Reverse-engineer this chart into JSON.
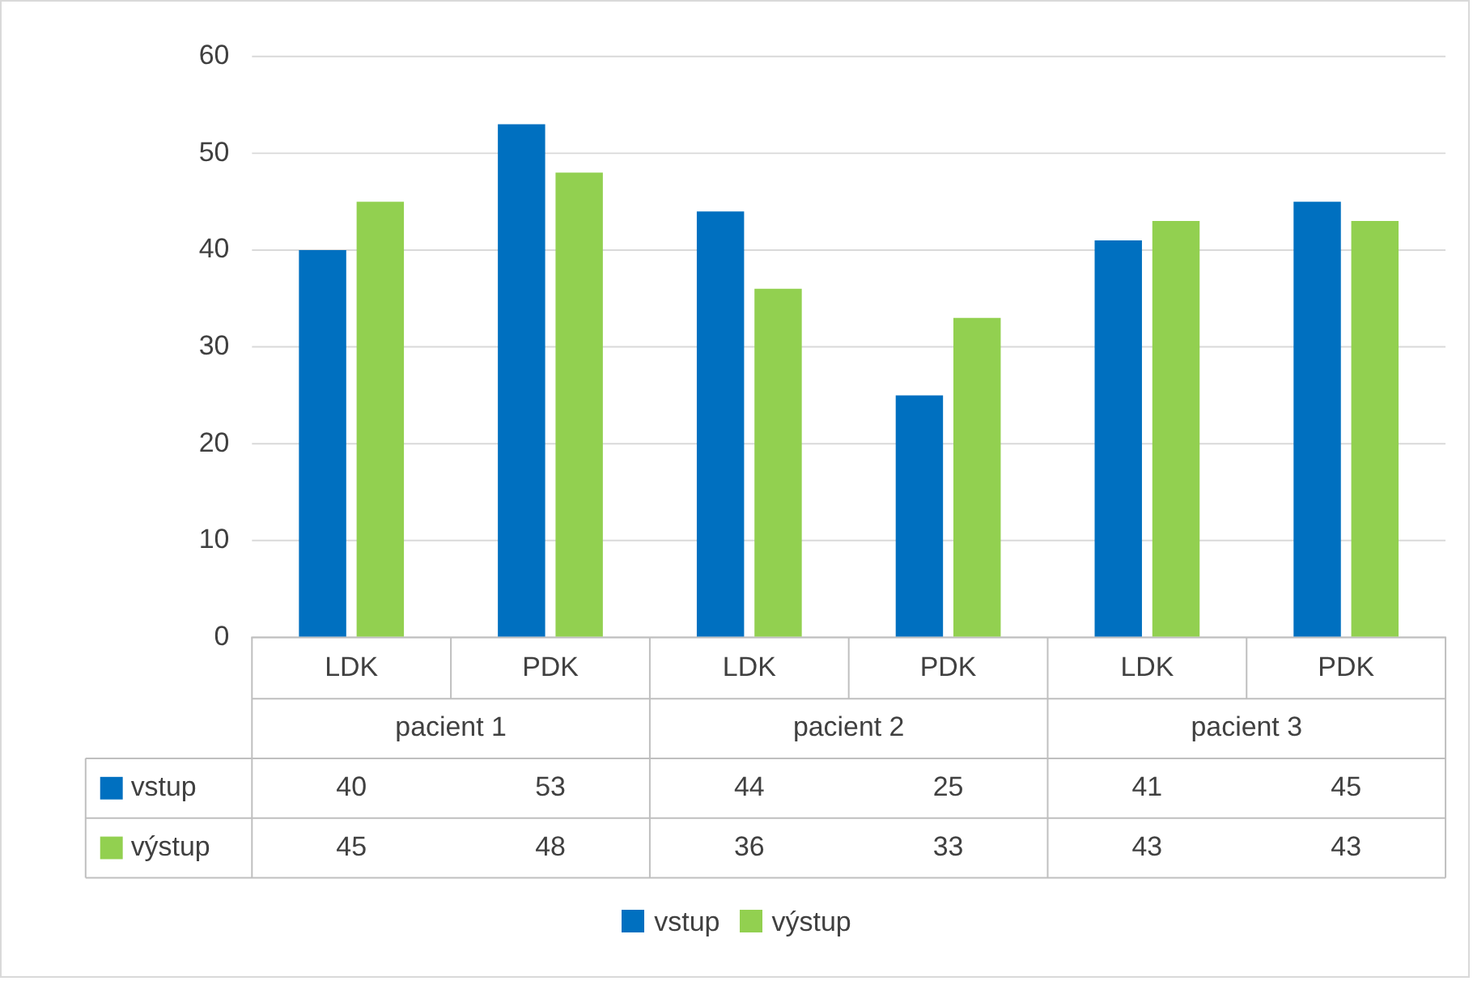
{
  "chart_data": {
    "type": "bar",
    "categories": [
      "LDK",
      "PDK",
      "LDK",
      "PDK",
      "LDK",
      "PDK"
    ],
    "annotations": [
      "pacient 1",
      "pacient 2",
      "pacient 3"
    ],
    "series": [
      {
        "name": "vstup",
        "color": "#0070c0",
        "values": [
          40,
          53,
          44,
          25,
          41,
          45
        ]
      },
      {
        "name": "výstup",
        "color": "#92d050",
        "values": [
          45,
          48,
          36,
          33,
          43,
          43
        ]
      }
    ],
    "ylim": [
      0,
      60
    ],
    "yticks": [
      0,
      10,
      20,
      30,
      40,
      50,
      60
    ],
    "grid": "y",
    "legend": "bottom",
    "data_labels": true
  }
}
